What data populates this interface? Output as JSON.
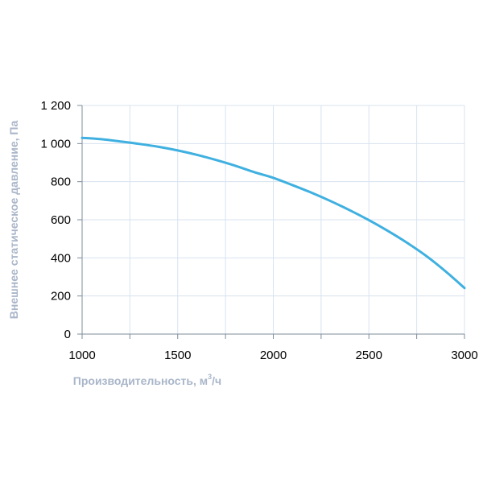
{
  "chart_data": {
    "type": "line",
    "title": "",
    "xlabel": "Производительность, м³/ч",
    "xlabel_parts": {
      "main": "Производительность, м",
      "sup": "3",
      "tail": "/ч"
    },
    "ylabel": "Внешнее статическое давление, Па",
    "xlim": [
      1000,
      3000
    ],
    "ylim": [
      0,
      1200
    ],
    "x_ticks": [
      1000,
      1500,
      2000,
      2500,
      3000
    ],
    "x_tick_labels": [
      "1000",
      "1500",
      "2000",
      "2500",
      "3000"
    ],
    "x_minor_ticks": [
      1250,
      1750,
      2250,
      2750
    ],
    "y_ticks": [
      0,
      200,
      400,
      600,
      800,
      1000,
      1200
    ],
    "y_tick_labels": [
      "0",
      "200",
      "400",
      "600",
      "800",
      "1 000",
      "1 200"
    ],
    "grid": true,
    "legend": "none",
    "series": [
      {
        "color": "#3fb0e0",
        "x": [
          1000,
          1100,
          1200,
          1300,
          1400,
          1500,
          1600,
          1700,
          1800,
          1900,
          2000,
          2100,
          2200,
          2300,
          2400,
          2500,
          2600,
          2700,
          2800,
          2900,
          3000
        ],
        "y": [
          1030,
          1023,
          1011,
          998,
          983,
          964,
          941,
          914,
          884,
          850,
          820,
          782,
          742,
          698,
          650,
          598,
          541,
          479,
          410,
          330,
          242
        ]
      }
    ]
  },
  "colors": {
    "grid": "#d8e3ef",
    "axis": "#7f8c9a",
    "axis_title": "#a9b6c9",
    "line": "#3fb0e0"
  }
}
